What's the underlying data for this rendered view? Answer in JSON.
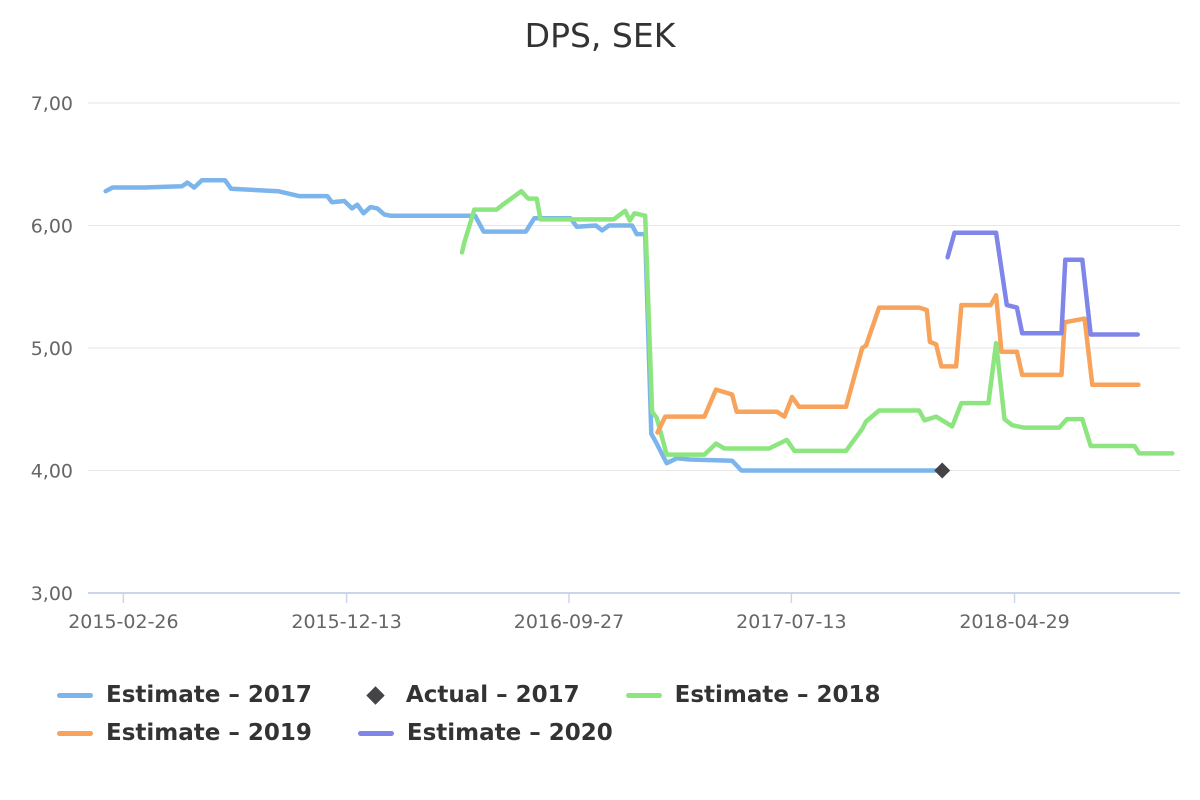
{
  "title": "DPS, SEK",
  "colors": {
    "grid_line": "#E6E6E6",
    "axis_line": "#CCD6EB",
    "axis_label": "#666666",
    "title_text": "#333333",
    "legend_text": "#333333",
    "background": "#FFFFFF"
  },
  "chart_data": {
    "type": "line",
    "title": "DPS, SEK",
    "xlabel": "",
    "ylabel": "",
    "grid": "horizontal-only",
    "legend_position": "bottom-left",
    "y_axis": {
      "min": 3,
      "max": 7,
      "ticks": [
        {
          "v": 7,
          "label": "7,00"
        },
        {
          "v": 6,
          "label": "6,00"
        },
        {
          "v": 5,
          "label": "5,00"
        },
        {
          "v": 4,
          "label": "4,00"
        },
        {
          "v": 3,
          "label": "3,00"
        }
      ]
    },
    "x_axis": {
      "min": "2015-01-11",
      "max": "2018-11-30",
      "ticks": [
        {
          "date": "2015-02-26",
          "label": "2015-02-26"
        },
        {
          "date": "2015-12-13",
          "label": "2015-12-13"
        },
        {
          "date": "2016-09-27",
          "label": "2016-09-27"
        },
        {
          "date": "2017-07-13",
          "label": "2017-07-13"
        },
        {
          "date": "2018-04-29",
          "label": "2018-04-29"
        }
      ]
    },
    "series": [
      {
        "name": "Estimate – 2017",
        "color": "#7CB5EC",
        "type": "line",
        "points": [
          [
            "2015-02-03",
            6.28
          ],
          [
            "2015-02-12",
            6.31
          ],
          [
            "2015-03-25",
            6.31
          ],
          [
            "2015-05-13",
            6.32
          ],
          [
            "2015-05-20",
            6.35
          ],
          [
            "2015-05-29",
            6.31
          ],
          [
            "2015-06-08",
            6.37
          ],
          [
            "2015-07-08",
            6.37
          ],
          [
            "2015-07-16",
            6.3
          ],
          [
            "2015-09-15",
            6.28
          ],
          [
            "2015-10-12",
            6.24
          ],
          [
            "2015-11-18",
            6.24
          ],
          [
            "2015-11-24",
            6.19
          ],
          [
            "2015-12-10",
            6.2
          ],
          [
            "2015-12-20",
            6.14
          ],
          [
            "2015-12-27",
            6.17
          ],
          [
            "2016-01-04",
            6.1
          ],
          [
            "2016-01-13",
            6.15
          ],
          [
            "2016-01-22",
            6.14
          ],
          [
            "2016-01-31",
            6.09
          ],
          [
            "2016-02-08",
            6.08
          ],
          [
            "2016-05-28",
            6.08
          ],
          [
            "2016-06-08",
            5.95
          ],
          [
            "2016-08-02",
            5.95
          ],
          [
            "2016-08-13",
            6.06
          ],
          [
            "2016-09-29",
            6.06
          ],
          [
            "2016-10-07",
            5.99
          ],
          [
            "2016-11-01",
            6.0
          ],
          [
            "2016-11-09",
            5.96
          ],
          [
            "2016-11-18",
            6.0
          ],
          [
            "2016-12-18",
            6.0
          ],
          [
            "2016-12-24",
            5.93
          ],
          [
            "2017-01-04",
            5.93
          ],
          [
            "2017-01-12",
            4.3
          ],
          [
            "2017-01-19",
            4.22
          ],
          [
            "2017-02-01",
            4.06
          ],
          [
            "2017-02-14",
            4.1
          ],
          [
            "2017-03-03",
            4.09
          ],
          [
            "2017-04-27",
            4.08
          ],
          [
            "2017-05-09",
            4.0
          ],
          [
            "2018-01-25",
            4.0
          ]
        ]
      },
      {
        "name": "Actual – 2017",
        "color": "#434348",
        "type": "diamond",
        "points": [
          [
            "2018-01-25",
            4.0
          ]
        ]
      },
      {
        "name": "Estimate – 2018",
        "color": "#8DE57F",
        "type": "line",
        "points": [
          [
            "2016-05-11",
            5.78
          ],
          [
            "2016-05-14",
            5.86
          ],
          [
            "2016-05-27",
            6.13
          ],
          [
            "2016-06-25",
            6.13
          ],
          [
            "2016-07-03",
            6.17
          ],
          [
            "2016-07-27",
            6.28
          ],
          [
            "2016-08-05",
            6.22
          ],
          [
            "2016-08-16",
            6.22
          ],
          [
            "2016-08-21",
            6.05
          ],
          [
            "2016-11-24",
            6.05
          ],
          [
            "2016-12-09",
            6.12
          ],
          [
            "2016-12-15",
            6.04
          ],
          [
            "2016-12-21",
            6.1
          ],
          [
            "2017-01-04",
            6.08
          ],
          [
            "2017-01-13",
            4.48
          ],
          [
            "2017-01-19",
            4.43
          ],
          [
            "2017-02-01",
            4.13
          ],
          [
            "2017-03-22",
            4.13
          ],
          [
            "2017-04-06",
            4.22
          ],
          [
            "2017-04-17",
            4.18
          ],
          [
            "2017-06-14",
            4.18
          ],
          [
            "2017-07-07",
            4.25
          ],
          [
            "2017-07-17",
            4.16
          ],
          [
            "2017-09-22",
            4.16
          ],
          [
            "2017-10-13",
            4.34
          ],
          [
            "2017-10-18",
            4.4
          ],
          [
            "2017-11-04",
            4.49
          ],
          [
            "2017-12-26",
            4.49
          ],
          [
            "2018-01-02",
            4.41
          ],
          [
            "2018-01-17",
            4.44
          ],
          [
            "2018-02-07",
            4.36
          ],
          [
            "2018-02-19",
            4.55
          ],
          [
            "2018-03-26",
            4.55
          ],
          [
            "2018-04-05",
            5.04
          ],
          [
            "2018-04-16",
            4.42
          ],
          [
            "2018-04-26",
            4.37
          ],
          [
            "2018-05-11",
            4.35
          ],
          [
            "2018-06-26",
            4.35
          ],
          [
            "2018-07-06",
            4.42
          ],
          [
            "2018-07-26",
            4.42
          ],
          [
            "2018-08-06",
            4.2
          ],
          [
            "2018-10-02",
            4.2
          ],
          [
            "2018-10-08",
            4.14
          ],
          [
            "2018-11-20",
            4.14
          ]
        ]
      },
      {
        "name": "Estimate – 2019",
        "color": "#F7A35C",
        "type": "line",
        "points": [
          [
            "2017-01-20",
            4.31
          ],
          [
            "2017-01-30",
            4.44
          ],
          [
            "2017-03-22",
            4.44
          ],
          [
            "2017-04-06",
            4.66
          ],
          [
            "2017-04-27",
            4.62
          ],
          [
            "2017-05-03",
            4.48
          ],
          [
            "2017-06-24",
            4.48
          ],
          [
            "2017-07-04",
            4.44
          ],
          [
            "2017-07-14",
            4.6
          ],
          [
            "2017-07-23",
            4.52
          ],
          [
            "2017-09-22",
            4.52
          ],
          [
            "2017-10-13",
            5.0
          ],
          [
            "2017-10-18",
            5.02
          ],
          [
            "2017-11-04",
            5.33
          ],
          [
            "2017-12-26",
            5.33
          ],
          [
            "2018-01-05",
            5.31
          ],
          [
            "2018-01-09",
            5.05
          ],
          [
            "2018-01-17",
            5.03
          ],
          [
            "2018-01-24",
            4.85
          ],
          [
            "2018-02-12",
            4.85
          ],
          [
            "2018-02-19",
            5.35
          ],
          [
            "2018-03-29",
            5.35
          ],
          [
            "2018-04-05",
            5.43
          ],
          [
            "2018-04-12",
            4.97
          ],
          [
            "2018-05-02",
            4.97
          ],
          [
            "2018-05-09",
            4.78
          ],
          [
            "2018-06-29",
            4.78
          ],
          [
            "2018-07-03",
            5.21
          ],
          [
            "2018-07-29",
            5.24
          ],
          [
            "2018-08-08",
            4.7
          ],
          [
            "2018-10-07",
            4.7
          ]
        ]
      },
      {
        "name": "Estimate – 2020",
        "color": "#8085E9",
        "type": "line",
        "points": [
          [
            "2018-02-01",
            5.74
          ],
          [
            "2018-02-10",
            5.94
          ],
          [
            "2018-04-05",
            5.94
          ],
          [
            "2018-04-19",
            5.35
          ],
          [
            "2018-05-02",
            5.33
          ],
          [
            "2018-05-09",
            5.12
          ],
          [
            "2018-06-29",
            5.12
          ],
          [
            "2018-07-04",
            5.72
          ],
          [
            "2018-07-26",
            5.72
          ],
          [
            "2018-08-06",
            5.11
          ],
          [
            "2018-10-06",
            5.11
          ]
        ]
      }
    ]
  }
}
